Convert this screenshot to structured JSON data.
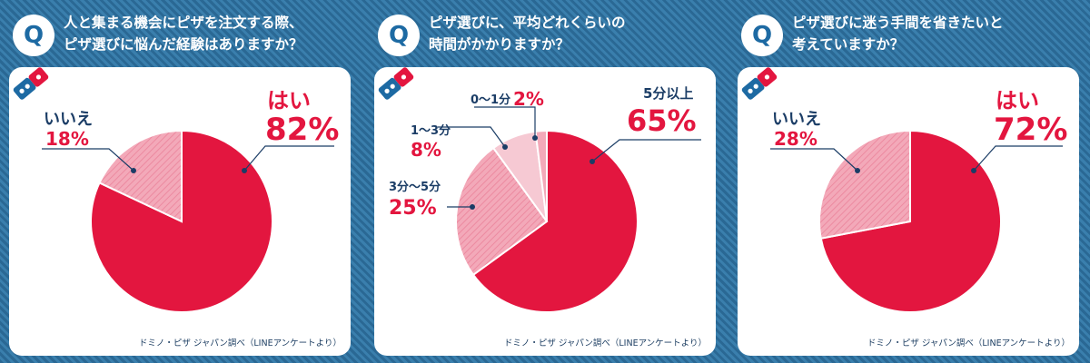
{
  "colors": {
    "accent_red": "#e3163f",
    "light_pink": "#f3a9b9",
    "pale_pink": "#f6c9d3",
    "navy": "#1b3d66",
    "blue": "#1d6aa3"
  },
  "panels": [
    {
      "q_badge": "Q",
      "question": [
        "人と集まる機会にピザを注文する際、",
        "ピザ選びに悩んだ経験はありますか？"
      ],
      "source": "ドミノ・ピザ ジャパン調べ（LINEアンケートより）",
      "chart_data": {
        "type": "pie",
        "slices": [
          {
            "label": "はい",
            "value_label": "82%",
            "value": 82
          },
          {
            "label": "いいえ",
            "value_label": "18%",
            "value": 18
          }
        ]
      }
    },
    {
      "q_badge": "Q",
      "question": [
        "ピザ選びに、平均どれくらいの",
        "時間がかかりますか？"
      ],
      "source": "ドミノ・ピザ ジャパン調べ（LINEアンケートより）",
      "chart_data": {
        "type": "pie",
        "slices": [
          {
            "label": "5分以上",
            "value_label": "65%",
            "value": 65
          },
          {
            "label": "3分〜5分",
            "value_label": "25%",
            "value": 25
          },
          {
            "label": "1〜3分",
            "value_label": "8%",
            "value": 8
          },
          {
            "label": "0〜1分",
            "value_label": "2%",
            "value": 2
          }
        ]
      }
    },
    {
      "q_badge": "Q",
      "question": [
        "ピザ選びに迷う手間を省きたいと",
        "考えていますか？"
      ],
      "source": "ドミノ・ピザ ジャパン調べ（LINEアンケートより）",
      "chart_data": {
        "type": "pie",
        "slices": [
          {
            "label": "はい",
            "value_label": "72%",
            "value": 72
          },
          {
            "label": "いいえ",
            "value_label": "28%",
            "value": 28
          }
        ]
      }
    }
  ]
}
